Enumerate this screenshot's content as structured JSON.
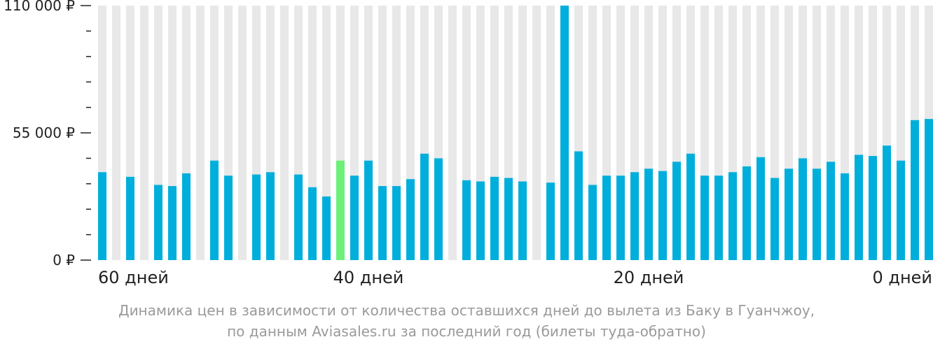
{
  "chart_data": {
    "type": "bar",
    "x_days_before_departure": [
      59,
      58,
      57,
      56,
      55,
      54,
      53,
      52,
      51,
      50,
      49,
      48,
      47,
      46,
      45,
      44,
      43,
      42,
      41,
      40,
      39,
      38,
      37,
      36,
      35,
      34,
      33,
      32,
      31,
      30,
      29,
      28,
      27,
      26,
      25,
      24,
      23,
      22,
      21,
      20,
      19,
      18,
      17,
      16,
      15,
      14,
      13,
      12,
      11,
      10,
      9,
      8,
      7,
      6,
      5,
      4,
      3,
      2,
      1,
      0
    ],
    "values": [
      38000,
      null,
      36000,
      null,
      32500,
      32000,
      37500,
      null,
      43000,
      36500,
      null,
      37000,
      38000,
      null,
      37000,
      31500,
      27500,
      43000,
      36500,
      43000,
      32000,
      32000,
      35000,
      46000,
      44000,
      null,
      34500,
      34000,
      36000,
      35500,
      34000,
      null,
      33500,
      110000,
      47000,
      32500,
      36500,
      36500,
      38000,
      39500,
      38500,
      42500,
      46000,
      36500,
      36500,
      38000,
      40500,
      44500,
      35500,
      39500,
      44000,
      39500,
      42500,
      37500,
      45500,
      45000,
      49500,
      43000,
      60500,
      61000
    ],
    "highlight_index": 17,
    "tick_labels_x": [
      "60 дней",
      "40 дней",
      "20 дней",
      "0 дней"
    ],
    "tick_labels_y": [
      "110 000 ₽",
      "55 000 ₽",
      "0 ₽"
    ],
    "y_ticks": [
      110000,
      55000,
      0
    ],
    "ylim": [
      0,
      110000
    ],
    "caption_line1": "Динамика цен в зависимости от количества оставшихся дней до вылета из Баку в Гуанчжоу,",
    "caption_line2": "по данным Aviasales.ru за последний год (билеты туда-обратно)",
    "colors": {
      "bar": "#00aedb",
      "highlight": "#6cf07a",
      "stripe": "#e8e8e8",
      "text": "#222222",
      "caption": "#9a9a9a"
    },
    "grid": "vertical stripes"
  }
}
